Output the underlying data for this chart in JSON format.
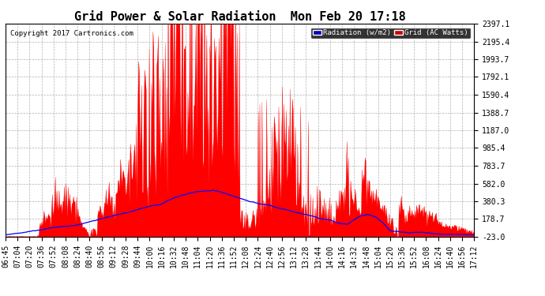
{
  "title": "Grid Power & Solar Radiation  Mon Feb 20 17:18",
  "copyright": "Copyright 2017 Cartronics.com",
  "yticks": [
    -23.0,
    178.7,
    380.3,
    582.0,
    783.7,
    985.4,
    1187.0,
    1388.7,
    1590.4,
    1792.1,
    1993.7,
    2195.4,
    2397.1
  ],
  "xtick_labels": [
    "06:45",
    "07:04",
    "07:20",
    "07:36",
    "07:52",
    "08:08",
    "08:24",
    "08:40",
    "08:56",
    "09:12",
    "09:28",
    "09:44",
    "10:00",
    "10:16",
    "10:32",
    "10:48",
    "11:04",
    "11:20",
    "11:36",
    "11:52",
    "12:08",
    "12:24",
    "12:40",
    "12:56",
    "13:12",
    "13:28",
    "13:44",
    "14:00",
    "14:16",
    "14:32",
    "14:48",
    "15:04",
    "15:20",
    "15:36",
    "15:52",
    "16:08",
    "16:24",
    "16:40",
    "16:56",
    "17:12"
  ],
  "radiation_color": "blue",
  "grid_color": "red",
  "background_color": "white",
  "legend_radiation_label": "Radiation (w/m2)",
  "legend_grid_label": "Grid (AC Watts)",
  "legend_radiation_bg": "#0000bb",
  "legend_grid_bg": "#cc0000",
  "title_fontsize": 11,
  "tick_fontsize": 7,
  "ymin": -23.0,
  "ymax": 2397.1,
  "n_points": 620
}
